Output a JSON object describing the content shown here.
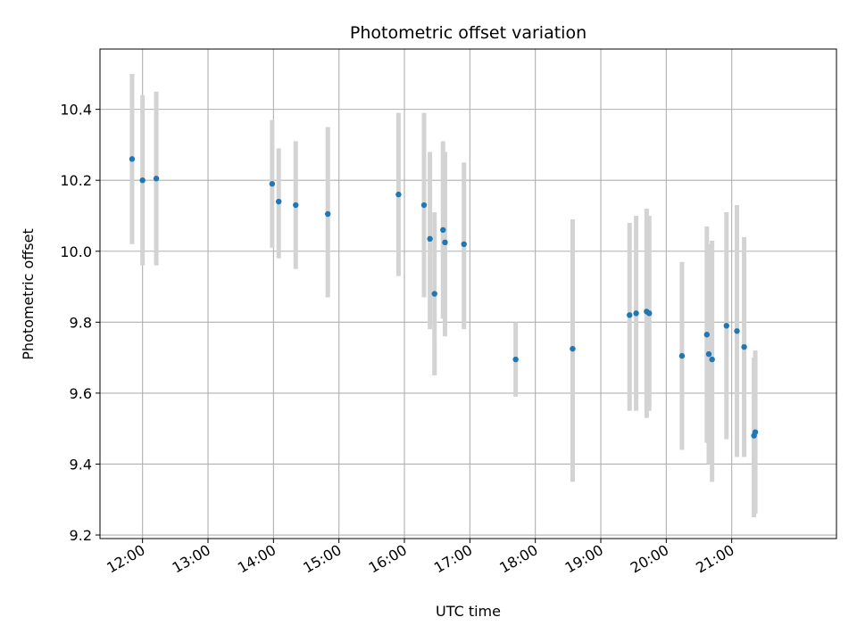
{
  "chart_data": {
    "type": "scatter",
    "title": "Photometric offset variation",
    "xlabel": "UTC time",
    "ylabel": "Photometric offset",
    "x_is_time": true,
    "x_units": "hours (UTC)",
    "xlim": [
      11.35,
      22.6
    ],
    "ylim": [
      9.19,
      10.57
    ],
    "xticks": [
      {
        "value": 12,
        "label": "12:00"
      },
      {
        "value": 13,
        "label": "13:00"
      },
      {
        "value": 14,
        "label": "14:00"
      },
      {
        "value": 15,
        "label": "15:00"
      },
      {
        "value": 16,
        "label": "16:00"
      },
      {
        "value": 17,
        "label": "17:00"
      },
      {
        "value": 18,
        "label": "18:00"
      },
      {
        "value": 19,
        "label": "19:00"
      },
      {
        "value": 20,
        "label": "20:00"
      },
      {
        "value": 21,
        "label": "21:00"
      }
    ],
    "yticks": [
      {
        "value": 9.2,
        "label": "9.2"
      },
      {
        "value": 9.4,
        "label": "9.4"
      },
      {
        "value": 9.6,
        "label": "9.6"
      },
      {
        "value": 9.8,
        "label": "9.8"
      },
      {
        "value": 10.0,
        "label": "10.0"
      },
      {
        "value": 10.2,
        "label": "10.2"
      },
      {
        "value": 10.4,
        "label": "10.4"
      }
    ],
    "grid": true,
    "colors": {
      "point": "#1f77b4",
      "errorbar": "#d3d3d3",
      "grid": "#b0b0b0",
      "axes": "#000000"
    },
    "points": [
      {
        "time": "11:50",
        "x": 11.84,
        "y": 10.26,
        "ylow": 10.02,
        "yhigh": 10.5
      },
      {
        "time": "12:00",
        "x": 12.0,
        "y": 10.2,
        "ylow": 9.96,
        "yhigh": 10.44
      },
      {
        "time": "12:13",
        "x": 12.21,
        "y": 10.205,
        "ylow": 9.96,
        "yhigh": 10.45
      },
      {
        "time": "13:59",
        "x": 13.98,
        "y": 10.19,
        "ylow": 10.01,
        "yhigh": 10.37
      },
      {
        "time": "14:05",
        "x": 14.08,
        "y": 10.14,
        "ylow": 9.98,
        "yhigh": 10.29
      },
      {
        "time": "14:21",
        "x": 14.34,
        "y": 10.13,
        "ylow": 9.95,
        "yhigh": 10.31
      },
      {
        "time": "14:50",
        "x": 14.83,
        "y": 10.105,
        "ylow": 9.87,
        "yhigh": 10.35
      },
      {
        "time": "15:55",
        "x": 15.91,
        "y": 10.16,
        "ylow": 9.93,
        "yhigh": 10.39
      },
      {
        "time": "16:18",
        "x": 16.3,
        "y": 10.13,
        "ylow": 9.87,
        "yhigh": 10.39
      },
      {
        "time": "16:23",
        "x": 16.39,
        "y": 10.035,
        "ylow": 9.78,
        "yhigh": 10.28
      },
      {
        "time": "16:28",
        "x": 16.46,
        "y": 9.88,
        "ylow": 9.65,
        "yhigh": 10.11
      },
      {
        "time": "16:36",
        "x": 16.59,
        "y": 10.06,
        "ylow": 9.81,
        "yhigh": 10.31
      },
      {
        "time": "16:37",
        "x": 16.62,
        "y": 10.025,
        "ylow": 9.76,
        "yhigh": 10.28
      },
      {
        "time": "16:55",
        "x": 16.91,
        "y": 10.02,
        "ylow": 9.78,
        "yhigh": 10.25
      },
      {
        "time": "17:42",
        "x": 17.7,
        "y": 9.695,
        "ylow": 9.59,
        "yhigh": 9.8
      },
      {
        "time": "18:34",
        "x": 18.57,
        "y": 9.725,
        "ylow": 9.35,
        "yhigh": 10.09
      },
      {
        "time": "19:26",
        "x": 19.44,
        "y": 9.82,
        "ylow": 9.55,
        "yhigh": 10.08
      },
      {
        "time": "19:32",
        "x": 19.54,
        "y": 9.825,
        "ylow": 9.55,
        "yhigh": 10.1
      },
      {
        "time": "19:42",
        "x": 19.7,
        "y": 9.83,
        "ylow": 9.53,
        "yhigh": 10.12
      },
      {
        "time": "19:44",
        "x": 19.74,
        "y": 9.825,
        "ylow": 9.55,
        "yhigh": 10.1
      },
      {
        "time": "20:14",
        "x": 20.24,
        "y": 9.705,
        "ylow": 9.44,
        "yhigh": 9.97
      },
      {
        "time": "20:37",
        "x": 20.62,
        "y": 9.765,
        "ylow": 9.46,
        "yhigh": 10.07
      },
      {
        "time": "20:39",
        "x": 20.65,
        "y": 9.71,
        "ylow": 9.4,
        "yhigh": 10.02
      },
      {
        "time": "20:42",
        "x": 20.7,
        "y": 9.695,
        "ylow": 9.35,
        "yhigh": 10.03
      },
      {
        "time": "20:55",
        "x": 20.92,
        "y": 9.79,
        "ylow": 9.47,
        "yhigh": 10.11
      },
      {
        "time": "21:05",
        "x": 21.08,
        "y": 9.775,
        "ylow": 9.42,
        "yhigh": 10.13
      },
      {
        "time": "21:11",
        "x": 21.19,
        "y": 9.73,
        "ylow": 9.42,
        "yhigh": 10.04
      },
      {
        "time": "21:20",
        "x": 21.34,
        "y": 9.48,
        "ylow": 9.25,
        "yhigh": 9.7
      },
      {
        "time": "21:21",
        "x": 21.36,
        "y": 9.49,
        "ylow": 9.26,
        "yhigh": 9.72
      }
    ]
  }
}
